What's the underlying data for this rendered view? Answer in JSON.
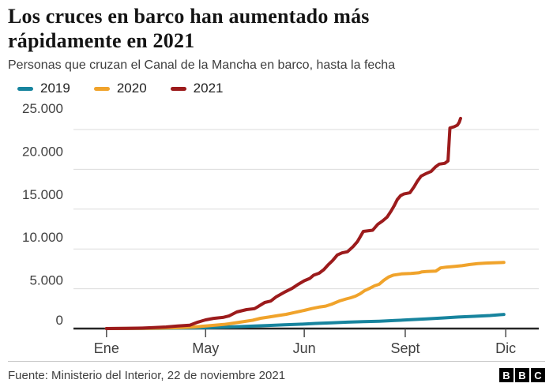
{
  "header": {
    "title": "Los cruces en barco han aumentado más rápidamente en 2021",
    "subtitle": "Personas que cruzan el Canal de la Mancha en barco, hasta la fecha"
  },
  "colors": {
    "teal": "#17849E",
    "amber": "#F0A32B",
    "maroon": "#9C1B1C",
    "grid": "#DBDBDB",
    "axis": "#262626",
    "tick": "#4D4D4D",
    "label_gray": "#404040"
  },
  "chart_data": {
    "type": "line",
    "title": "Los cruces en barco han aumentado más rápidamente en 2021",
    "subtitle": "Personas que cruzan el Canal de la Mancha en barco, hasta la fecha",
    "grid": true,
    "legend_position": "top",
    "ylim": [
      0,
      25000
    ],
    "y_ticks": [
      {
        "value": 0,
        "label": "0"
      },
      {
        "value": 5000,
        "label": "5.000"
      },
      {
        "value": 10000,
        "label": "10.000"
      },
      {
        "value": 15000,
        "label": "15.000"
      },
      {
        "value": 20000,
        "label": "20.000"
      },
      {
        "value": 25000,
        "label": "25.000"
      }
    ],
    "x_ticks": [
      {
        "label": "Ene",
        "pos": 7.1
      },
      {
        "label": "May",
        "pos": 28.4
      },
      {
        "label": "Jun",
        "pos": 49.6
      },
      {
        "label": "Sept",
        "pos": 71.3
      },
      {
        "label": "Dic",
        "pos": 92.9
      }
    ],
    "series": [
      {
        "name": "2019",
        "color_key": "teal",
        "points": [
          [
            7.1,
            0
          ],
          [
            18.2,
            30
          ],
          [
            25.0,
            70
          ],
          [
            28.4,
            110
          ],
          [
            31.7,
            170
          ],
          [
            35.1,
            240
          ],
          [
            38.5,
            310
          ],
          [
            41.9,
            390
          ],
          [
            45.3,
            470
          ],
          [
            48.7,
            550
          ],
          [
            52.1,
            640
          ],
          [
            55.5,
            720
          ],
          [
            58.9,
            800
          ],
          [
            62.3,
            860
          ],
          [
            65.7,
            920
          ],
          [
            69.1,
            1010
          ],
          [
            72.5,
            1110
          ],
          [
            75.9,
            1210
          ],
          [
            79.3,
            1330
          ],
          [
            82.7,
            1450
          ],
          [
            86.1,
            1540
          ],
          [
            89.5,
            1640
          ],
          [
            92.5,
            1780
          ]
        ]
      },
      {
        "name": "2020",
        "color_key": "amber",
        "points": [
          [
            7.1,
            0
          ],
          [
            14.8,
            30
          ],
          [
            19.0,
            60
          ],
          [
            23.3,
            120
          ],
          [
            25.8,
            200
          ],
          [
            28.4,
            320
          ],
          [
            30.4,
            430
          ],
          [
            32.3,
            520
          ],
          [
            33.4,
            600
          ],
          [
            35.1,
            740
          ],
          [
            36.8,
            890
          ],
          [
            38.5,
            1040
          ],
          [
            40.2,
            1290
          ],
          [
            41.9,
            1440
          ],
          [
            44.0,
            1640
          ],
          [
            45.7,
            1790
          ],
          [
            47.4,
            2000
          ],
          [
            49.6,
            2280
          ],
          [
            51.3,
            2520
          ],
          [
            53.0,
            2720
          ],
          [
            54.2,
            2820
          ],
          [
            55.5,
            3070
          ],
          [
            57.2,
            3470
          ],
          [
            58.6,
            3720
          ],
          [
            59.6,
            3870
          ],
          [
            60.6,
            4070
          ],
          [
            61.6,
            4370
          ],
          [
            62.6,
            4770
          ],
          [
            63.7,
            5070
          ],
          [
            64.7,
            5370
          ],
          [
            65.7,
            5570
          ],
          [
            66.7,
            6070
          ],
          [
            67.7,
            6470
          ],
          [
            68.8,
            6720
          ],
          [
            70.5,
            6870
          ],
          [
            72.5,
            6920
          ],
          [
            74.2,
            7000
          ],
          [
            74.9,
            7120
          ],
          [
            75.9,
            7170
          ],
          [
            77.9,
            7220
          ],
          [
            78.9,
            7620
          ],
          [
            80.1,
            7720
          ],
          [
            81.8,
            7800
          ],
          [
            83.5,
            7900
          ],
          [
            85.2,
            8050
          ],
          [
            86.9,
            8150
          ],
          [
            88.6,
            8220
          ],
          [
            90.3,
            8250
          ],
          [
            92.5,
            8300
          ]
        ]
      },
      {
        "name": "2021",
        "color_key": "maroon",
        "points": [
          [
            7.1,
            0
          ],
          [
            11.4,
            20
          ],
          [
            14.8,
            60
          ],
          [
            17.3,
            120
          ],
          [
            19.9,
            200
          ],
          [
            22.4,
            320
          ],
          [
            25.0,
            430
          ],
          [
            26.7,
            800
          ],
          [
            28.4,
            1090
          ],
          [
            30.1,
            1280
          ],
          [
            32.1,
            1400
          ],
          [
            33.4,
            1580
          ],
          [
            35.1,
            2080
          ],
          [
            37.2,
            2380
          ],
          [
            38.9,
            2500
          ],
          [
            39.7,
            2770
          ],
          [
            41.1,
            3270
          ],
          [
            42.4,
            3450
          ],
          [
            43.6,
            4000
          ],
          [
            45.3,
            4550
          ],
          [
            47.0,
            5050
          ],
          [
            48.4,
            5600
          ],
          [
            49.6,
            6000
          ],
          [
            50.8,
            6300
          ],
          [
            51.6,
            6700
          ],
          [
            52.8,
            6950
          ],
          [
            53.8,
            7400
          ],
          [
            54.8,
            8050
          ],
          [
            55.7,
            8550
          ],
          [
            56.7,
            9250
          ],
          [
            57.7,
            9500
          ],
          [
            58.9,
            9650
          ],
          [
            60.1,
            10300
          ],
          [
            61.0,
            10900
          ],
          [
            61.6,
            11500
          ],
          [
            62.3,
            12200
          ],
          [
            64.3,
            12350
          ],
          [
            65.4,
            13100
          ],
          [
            66.4,
            13500
          ],
          [
            67.4,
            14000
          ],
          [
            68.3,
            14800
          ],
          [
            68.9,
            15400
          ],
          [
            69.6,
            16200
          ],
          [
            70.3,
            16700
          ],
          [
            71.0,
            16900
          ],
          [
            72.3,
            17050
          ],
          [
            73.2,
            17800
          ],
          [
            73.9,
            18500
          ],
          [
            74.7,
            19150
          ],
          [
            75.9,
            19500
          ],
          [
            76.9,
            19750
          ],
          [
            77.8,
            20300
          ],
          [
            78.6,
            20650
          ],
          [
            79.8,
            20750
          ],
          [
            80.5,
            21050
          ],
          [
            80.9,
            25200
          ],
          [
            81.8,
            25350
          ],
          [
            82.5,
            25550
          ],
          [
            82.9,
            25900
          ],
          [
            83.2,
            26400
          ]
        ]
      }
    ]
  },
  "footer": {
    "source": "Fuente: Ministerio del Interior, 22 de noviembre 2021",
    "logo_letters": [
      "B",
      "B",
      "C"
    ]
  }
}
